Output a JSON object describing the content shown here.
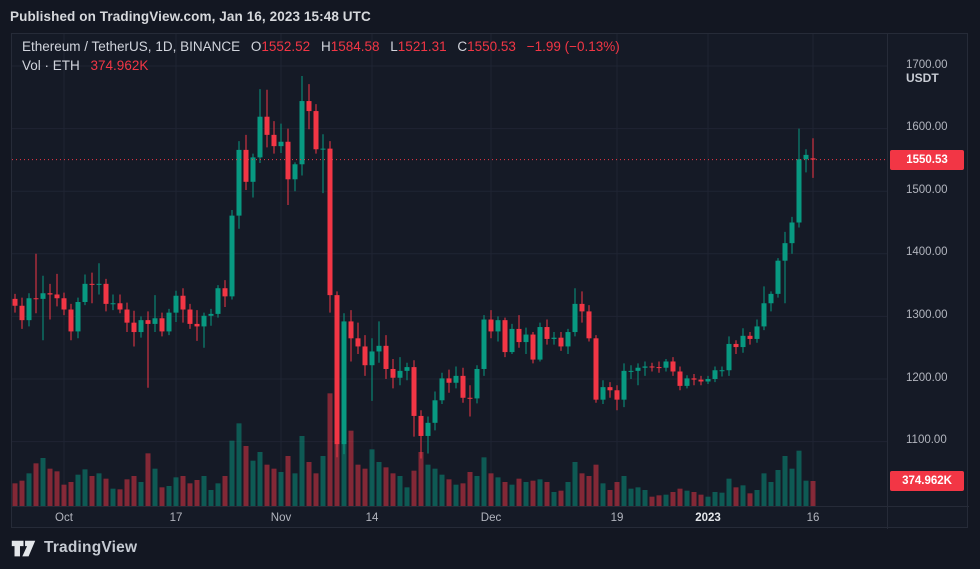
{
  "published_bar": {
    "text": "Published on TradingView.com, Jan 16, 2023 15:48 UTC"
  },
  "header": {
    "symbol_title": "Ethereum / TetherUS, 1D, BINANCE",
    "ohlc_labels": {
      "o": "O",
      "h": "H",
      "l": "L",
      "c": "C"
    },
    "ohlc_values": {
      "o": "1552.52",
      "h": "1584.58",
      "l": "1521.31",
      "c": "1550.53"
    },
    "change": "−1.99 (−0.13%)",
    "volume_label": "Vol · ETH",
    "volume_value": "374.962K"
  },
  "price_axis": {
    "currency": "USDT",
    "ticks": [
      {
        "label": "1700.00",
        "value": 1700
      },
      {
        "label": "1600.00",
        "value": 1600
      },
      {
        "label": "1500.00",
        "value": 1500
      },
      {
        "label": "1400.00",
        "value": 1400
      },
      {
        "label": "1300.00",
        "value": 1300
      },
      {
        "label": "1200.00",
        "value": 1200
      },
      {
        "label": "1100.00",
        "value": 1100
      }
    ],
    "last_price_badge": "1550.53",
    "volume_badge": "374.962K"
  },
  "time_axis": {
    "labels": [
      {
        "text": "Oct",
        "day_index": 7,
        "emphasis": false
      },
      {
        "text": "17",
        "day_index": 23,
        "emphasis": false
      },
      {
        "text": "Nov",
        "day_index": 38,
        "emphasis": false
      },
      {
        "text": "14",
        "day_index": 51,
        "emphasis": false
      },
      {
        "text": "Dec",
        "day_index": 68,
        "emphasis": false
      },
      {
        "text": "19",
        "day_index": 86,
        "emphasis": false
      },
      {
        "text": "2023",
        "day_index": 99,
        "emphasis": true
      },
      {
        "text": "16",
        "day_index": 114,
        "emphasis": false
      }
    ]
  },
  "footer": {
    "brand": "TradingView"
  },
  "colors": {
    "up": "#089981",
    "down": "#f23645",
    "badge": "#f23645",
    "background": "#131722",
    "panel": "#151a26",
    "grid": "#1f2433",
    "border": "#262b38",
    "text_muted": "#b2b5be",
    "text_bright": "#d1d4dc"
  },
  "chart_data": {
    "type": "candlestick",
    "symbol": "Ethereum / TetherUS",
    "exchange": "BINANCE",
    "interval": "1D",
    "dates_start": "2022-09-24",
    "dates_end": "2023-01-16",
    "last_price": 1550.53,
    "last_change": -1.99,
    "last_change_pct": -0.13,
    "last_volume_K": 374.962,
    "price_axis_ticks": [
      1700,
      1600,
      1500,
      1400,
      1300,
      1200,
      1100
    ],
    "visible_price_range": [
      1000,
      1750
    ],
    "volume_unit": "thousand ETH",
    "columns": [
      "date",
      "open",
      "high",
      "low",
      "close",
      "volume_K"
    ],
    "candles": [
      [
        "09-24",
        1328,
        1336,
        1306,
        1317,
        340
      ],
      [
        "09-25",
        1317,
        1330,
        1280,
        1294,
        380
      ],
      [
        "09-26",
        1294,
        1337,
        1284,
        1329,
        490
      ],
      [
        "09-27",
        1329,
        1400,
        1305,
        1328,
        640
      ],
      [
        "09-28",
        1328,
        1365,
        1262,
        1337,
        720
      ],
      [
        "09-29",
        1337,
        1352,
        1295,
        1335,
        560
      ],
      [
        "09-30",
        1335,
        1368,
        1316,
        1329,
        520
      ],
      [
        "10-01",
        1329,
        1338,
        1302,
        1311,
        320
      ],
      [
        "10-02",
        1311,
        1320,
        1262,
        1276,
        360
      ],
      [
        "10-03",
        1276,
        1330,
        1265,
        1323,
        470
      ],
      [
        "10-04",
        1323,
        1367,
        1318,
        1352,
        550
      ],
      [
        "10-05",
        1352,
        1370,
        1321,
        1351,
        450
      ],
      [
        "10-06",
        1351,
        1385,
        1335,
        1352,
        490
      ],
      [
        "10-07",
        1352,
        1360,
        1308,
        1320,
        410
      ],
      [
        "10-08",
        1320,
        1335,
        1310,
        1321,
        260
      ],
      [
        "10-09",
        1321,
        1335,
        1305,
        1311,
        250
      ],
      [
        "10-10",
        1311,
        1322,
        1275,
        1290,
        400
      ],
      [
        "10-11",
        1290,
        1309,
        1252,
        1275,
        450
      ],
      [
        "10-12",
        1275,
        1300,
        1266,
        1294,
        360
      ],
      [
        "10-13",
        1294,
        1308,
        1186,
        1288,
        790
      ],
      [
        "10-14",
        1288,
        1334,
        1275,
        1297,
        560
      ],
      [
        "10-15",
        1297,
        1306,
        1268,
        1276,
        280
      ],
      [
        "10-16",
        1276,
        1312,
        1270,
        1306,
        300
      ],
      [
        "10-17",
        1306,
        1341,
        1291,
        1333,
        430
      ],
      [
        "10-18",
        1333,
        1345,
        1290,
        1311,
        450
      ],
      [
        "10-19",
        1311,
        1320,
        1280,
        1288,
        340
      ],
      [
        "10-20",
        1288,
        1310,
        1261,
        1284,
        390
      ],
      [
        "10-21",
        1284,
        1306,
        1250,
        1301,
        450
      ],
      [
        "10-22",
        1301,
        1312,
        1285,
        1304,
        240
      ],
      [
        "10-23",
        1304,
        1350,
        1298,
        1345,
        340
      ],
      [
        "10-24",
        1345,
        1358,
        1315,
        1332,
        450
      ],
      [
        "10-25",
        1332,
        1470,
        1327,
        1461,
        980
      ],
      [
        "10-26",
        1461,
        1580,
        1440,
        1566,
        1240
      ],
      [
        "10-27",
        1566,
        1590,
        1502,
        1515,
        900
      ],
      [
        "10-28",
        1515,
        1560,
        1490,
        1554,
        680
      ],
      [
        "10-29",
        1554,
        1663,
        1545,
        1619,
        810
      ],
      [
        "10-30",
        1619,
        1662,
        1570,
        1590,
        620
      ],
      [
        "10-31",
        1590,
        1612,
        1560,
        1572,
        560
      ],
      [
        "11-01",
        1572,
        1608,
        1561,
        1579,
        510
      ],
      [
        "11-02",
        1579,
        1600,
        1478,
        1519,
        750
      ],
      [
        "11-03",
        1519,
        1546,
        1500,
        1543,
        490
      ],
      [
        "11-04",
        1543,
        1684,
        1525,
        1644,
        1050
      ],
      [
        "11-05",
        1644,
        1671,
        1599,
        1628,
        660
      ],
      [
        "11-06",
        1628,
        1639,
        1560,
        1567,
        490
      ],
      [
        "11-07",
        1567,
        1591,
        1497,
        1568,
        750
      ],
      [
        "11-08",
        1568,
        1580,
        1306,
        1334,
        1690
      ],
      [
        "11-09",
        1334,
        1340,
        1075,
        1096,
        1750
      ],
      [
        "11-10",
        1096,
        1305,
        1080,
        1292,
        1600
      ],
      [
        "11-11",
        1292,
        1310,
        1228,
        1265,
        1130
      ],
      [
        "11-12",
        1265,
        1290,
        1240,
        1252,
        620
      ],
      [
        "11-13",
        1252,
        1270,
        1205,
        1222,
        560
      ],
      [
        "11-14",
        1222,
        1265,
        1165,
        1244,
        850
      ],
      [
        "11-15",
        1244,
        1292,
        1226,
        1253,
        660
      ],
      [
        "11-16",
        1253,
        1270,
        1200,
        1216,
        580
      ],
      [
        "11-17",
        1216,
        1232,
        1185,
        1202,
        490
      ],
      [
        "11-18",
        1202,
        1235,
        1190,
        1213,
        450
      ],
      [
        "11-19",
        1213,
        1226,
        1198,
        1219,
        280
      ],
      [
        "11-20",
        1219,
        1230,
        1108,
        1141,
        530
      ],
      [
        "11-21",
        1141,
        1150,
        1073,
        1109,
        810
      ],
      [
        "11-22",
        1109,
        1140,
        1081,
        1130,
        620
      ],
      [
        "11-23",
        1130,
        1180,
        1118,
        1166,
        560
      ],
      [
        "11-24",
        1166,
        1210,
        1160,
        1201,
        470
      ],
      [
        "11-25",
        1201,
        1215,
        1178,
        1194,
        400
      ],
      [
        "11-26",
        1194,
        1220,
        1185,
        1205,
        320
      ],
      [
        "11-27",
        1205,
        1218,
        1162,
        1170,
        340
      ],
      [
        "11-28",
        1170,
        1190,
        1140,
        1169,
        510
      ],
      [
        "11-29",
        1169,
        1222,
        1161,
        1216,
        450
      ],
      [
        "11-30",
        1216,
        1302,
        1205,
        1295,
        730
      ],
      [
        "12-01",
        1295,
        1310,
        1265,
        1276,
        490
      ],
      [
        "12-02",
        1276,
        1300,
        1260,
        1294,
        430
      ],
      [
        "12-03",
        1294,
        1298,
        1235,
        1243,
        360
      ],
      [
        "12-04",
        1243,
        1288,
        1240,
        1280,
        320
      ],
      [
        "12-05",
        1280,
        1302,
        1250,
        1259,
        410
      ],
      [
        "12-06",
        1259,
        1282,
        1240,
        1271,
        360
      ],
      [
        "12-07",
        1271,
        1275,
        1225,
        1231,
        380
      ],
      [
        "12-08",
        1231,
        1290,
        1228,
        1283,
        400
      ],
      [
        "12-09",
        1283,
        1295,
        1255,
        1264,
        360
      ],
      [
        "12-10",
        1264,
        1275,
        1255,
        1266,
        210
      ],
      [
        "12-11",
        1266,
        1275,
        1245,
        1252,
        230
      ],
      [
        "12-12",
        1252,
        1280,
        1240,
        1275,
        360
      ],
      [
        "12-13",
        1275,
        1345,
        1268,
        1320,
        660
      ],
      [
        "12-14",
        1320,
        1340,
        1290,
        1308,
        490
      ],
      [
        "12-15",
        1308,
        1318,
        1260,
        1265,
        450
      ],
      [
        "12-16",
        1265,
        1270,
        1162,
        1167,
        620
      ],
      [
        "12-17",
        1167,
        1198,
        1160,
        1187,
        340
      ],
      [
        "12-18",
        1187,
        1195,
        1170,
        1182,
        240
      ],
      [
        "12-19",
        1182,
        1190,
        1150,
        1167,
        360
      ],
      [
        "12-20",
        1167,
        1225,
        1155,
        1213,
        450
      ],
      [
        "12-21",
        1213,
        1222,
        1200,
        1213,
        260
      ],
      [
        "12-22",
        1213,
        1225,
        1190,
        1218,
        280
      ],
      [
        "12-23",
        1218,
        1228,
        1205,
        1220,
        240
      ],
      [
        "12-24",
        1220,
        1226,
        1212,
        1219,
        140
      ],
      [
        "12-25",
        1219,
        1228,
        1210,
        1218,
        160
      ],
      [
        "12-26",
        1218,
        1232,
        1212,
        1228,
        170
      ],
      [
        "12-27",
        1228,
        1235,
        1205,
        1212,
        210
      ],
      [
        "12-28",
        1212,
        1220,
        1182,
        1189,
        260
      ],
      [
        "12-29",
        1189,
        1206,
        1185,
        1201,
        230
      ],
      [
        "12-30",
        1201,
        1208,
        1190,
        1199,
        210
      ],
      [
        "12-31",
        1199,
        1205,
        1190,
        1196,
        170
      ],
      [
        "01-01",
        1196,
        1205,
        1192,
        1200,
        140
      ],
      [
        "01-02",
        1200,
        1220,
        1195,
        1214,
        210
      ],
      [
        "01-03",
        1214,
        1220,
        1204,
        1214,
        200
      ],
      [
        "01-04",
        1214,
        1268,
        1205,
        1256,
        410
      ],
      [
        "01-05",
        1256,
        1262,
        1240,
        1251,
        280
      ],
      [
        "01-06",
        1251,
        1281,
        1242,
        1269,
        310
      ],
      [
        "01-07",
        1269,
        1275,
        1255,
        1264,
        190
      ],
      [
        "01-08",
        1264,
        1295,
        1258,
        1284,
        240
      ],
      [
        "01-09",
        1284,
        1348,
        1278,
        1321,
        490
      ],
      [
        "01-10",
        1321,
        1340,
        1308,
        1336,
        360
      ],
      [
        "01-11",
        1336,
        1393,
        1330,
        1389,
        540
      ],
      [
        "01-12",
        1389,
        1435,
        1321,
        1417,
        750
      ],
      [
        "01-13",
        1417,
        1459,
        1400,
        1450,
        560
      ],
      [
        "01-14",
        1450,
        1600,
        1442,
        1551,
        830
      ],
      [
        "01-15",
        1551,
        1567,
        1530,
        1558,
        380
      ],
      [
        "01-16",
        1552.52,
        1584.58,
        1521.31,
        1550.53,
        374.962
      ]
    ]
  }
}
